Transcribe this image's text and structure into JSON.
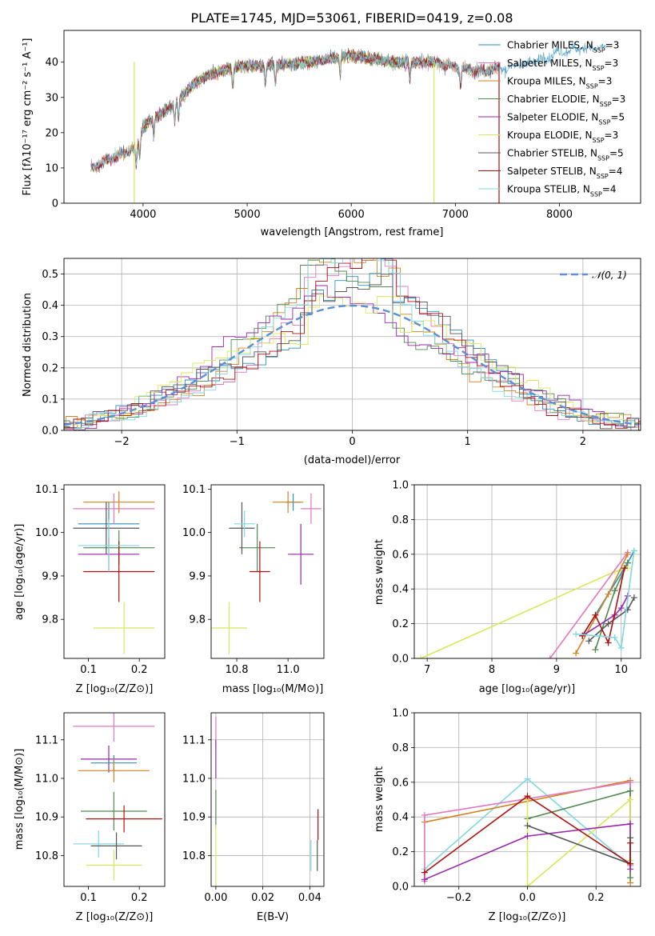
{
  "chart_data": [
    {
      "id": "spectrum",
      "type": "line",
      "title": "PLATE=1745, MJD=53061, FIBERID=0419, z=0.08",
      "xlabel": "wavelength [Angstrom, rest frame]",
      "ylabel": "Flux [fλ10⁻¹⁷ erg cm⁻² s⁻¹ A⁻¹]",
      "xlim": [
        3240,
        8780
      ],
      "ylim": [
        0,
        49
      ],
      "xticks": [
        4000,
        5000,
        6000,
        7000,
        8000
      ],
      "yticks": [
        0,
        10,
        20,
        30,
        40
      ],
      "grid": false,
      "legend_position": "top-right",
      "continuum": {
        "x": [
          3500,
          3650,
          3800,
          3950,
          4000,
          4100,
          4200,
          4300,
          4400,
          4500,
          4600,
          4800,
          5000,
          5200,
          5400,
          5600,
          5800,
          6000,
          6200,
          6400,
          6600,
          6800,
          7000,
          7200,
          7400,
          7600,
          7800,
          8000,
          8200,
          8450
        ],
        "y": [
          10,
          12,
          14,
          16,
          22,
          24,
          26,
          28,
          31,
          34,
          36,
          38,
          39,
          39,
          39.5,
          40,
          41,
          42,
          41,
          40,
          40,
          40,
          38.5,
          37.5,
          38,
          39,
          40.5,
          43,
          44,
          44
        ]
      },
      "absorption_lines": [
        3934,
        3969,
        4102,
        4304,
        4341,
        4861,
        5175,
        5270,
        5893,
        6563,
        7050
      ],
      "spikes": [
        {
          "series": "Kroupa ELODIE",
          "x": 3915
        },
        {
          "series": "Kroupa ELODIE",
          "x": 6795
        },
        {
          "series": "Salpeter STELIB",
          "x": 7420
        }
      ],
      "series": [
        {
          "name": "Chabrier MILES",
          "nssp": "3",
          "color": "#2f8fbf",
          "xrange": [
            3500,
            8450
          ]
        },
        {
          "name": "Salpeter MILES",
          "nssp": "3",
          "color": "#e377c2",
          "xrange": [
            3500,
            7420
          ]
        },
        {
          "name": "Kroupa MILES",
          "nssp": "3",
          "color": "#d4821e",
          "xrange": [
            3500,
            7420
          ]
        },
        {
          "name": "Chabrier ELODIE",
          "nssp": "3",
          "color": "#4f8a4f",
          "xrange": [
            3900,
            6800
          ]
        },
        {
          "name": "Salpeter ELODIE",
          "nssp": "5",
          "color": "#9a27b0",
          "xrange": [
            3900,
            6800
          ]
        },
        {
          "name": "Kroupa ELODIE",
          "nssp": "3",
          "color": "#d8e85a",
          "xrange": [
            3900,
            6800
          ]
        },
        {
          "name": "Chabrier STELIB",
          "nssp": "5",
          "color": "#555555",
          "xrange": [
            3500,
            7420
          ]
        },
        {
          "name": "Salpeter STELIB",
          "nssp": "4",
          "color": "#b01010",
          "xrange": [
            3500,
            7420
          ]
        },
        {
          "name": "Kroupa STELIB",
          "nssp": "4",
          "color": "#7fd8e0",
          "xrange": [
            3500,
            7420
          ]
        }
      ],
      "legend_subscript": "SSP"
    },
    {
      "id": "residuals",
      "type": "histogram",
      "xlabel": "(data-model)/error",
      "ylabel": "Normed distribution",
      "xlim": [
        -2.5,
        2.5
      ],
      "ylim": [
        0,
        0.55
      ],
      "xticks": [
        -2,
        -1,
        0,
        1,
        2
      ],
      "yticks": [
        0.0,
        0.1,
        0.2,
        0.3,
        0.4,
        0.5
      ],
      "grid": true,
      "legend_position": "top-right",
      "reference": {
        "name": "𝒩(0, 1)",
        "mean": 0,
        "sigma": 1,
        "color": "#5b8fd6"
      },
      "bin_width": 0.1
    },
    {
      "id": "age_vs_Z",
      "type": "errorbar",
      "xlabel": "Z [log₁₀(Z/Z⊙)]",
      "ylabel": "age  [log₁₀(age/yr)]",
      "xlim": [
        0.052,
        0.25
      ],
      "ylim": [
        9.71,
        10.11
      ],
      "xticks": [
        0.1,
        0.2
      ],
      "yticks": [
        9.8,
        9.9,
        10.0,
        10.1
      ],
      "grid": false,
      "points": [
        {
          "series": "Chabrier MILES",
          "x": 0.14,
          "xerr": 0.06,
          "y": 10.02,
          "yerr": 0.05
        },
        {
          "series": "Salpeter MILES",
          "x": 0.15,
          "xerr": 0.08,
          "y": 10.055,
          "yerr": 0.035
        },
        {
          "series": "Kroupa MILES",
          "x": 0.16,
          "xerr": 0.07,
          "y": 10.07,
          "yerr": 0.025
        },
        {
          "series": "Chabrier ELODIE",
          "x": 0.16,
          "xerr": 0.07,
          "y": 9.965,
          "yerr": 0.04
        },
        {
          "series": "Salpeter ELODIE",
          "x": 0.14,
          "xerr": 0.06,
          "y": 9.95,
          "yerr": 0.04
        },
        {
          "series": "Kroupa ELODIE",
          "x": 0.17,
          "xerr": 0.06,
          "y": 9.78,
          "yerr": 0.06
        },
        {
          "series": "Chabrier STELIB",
          "x": 0.135,
          "xerr": 0.065,
          "y": 10.01,
          "yerr": 0.06
        },
        {
          "series": "Salpeter STELIB",
          "x": 0.16,
          "xerr": 0.07,
          "y": 9.91,
          "yerr": 0.07
        },
        {
          "series": "Kroupa STELIB",
          "x": 0.14,
          "xerr": 0.06,
          "y": 9.97,
          "yerr": 0.06
        }
      ]
    },
    {
      "id": "age_vs_mass",
      "type": "errorbar",
      "xlabel": "mass [log₁₀(M/M⊙)]",
      "ylabel": "",
      "xlim": [
        10.7,
        11.14
      ],
      "ylim": [
        9.71,
        10.11
      ],
      "xticks": [
        10.8,
        11.0
      ],
      "yticks": [
        9.8,
        9.9,
        10.0,
        10.1
      ],
      "grid": false,
      "points": [
        {
          "series": "Chabrier MILES",
          "x": 11.02,
          "xerr": 0.03,
          "y": 10.07,
          "yerr": 0.02
        },
        {
          "series": "Salpeter MILES",
          "x": 11.09,
          "xerr": 0.04,
          "y": 10.055,
          "yerr": 0.035
        },
        {
          "series": "Kroupa MILES",
          "x": 11.0,
          "xerr": 0.06,
          "y": 10.07,
          "yerr": 0.025
        },
        {
          "series": "Chabrier ELODIE",
          "x": 10.88,
          "xerr": 0.07,
          "y": 9.965,
          "yerr": 0.055
        },
        {
          "series": "Salpeter ELODIE",
          "x": 11.05,
          "xerr": 0.05,
          "y": 9.95,
          "yerr": 0.07
        },
        {
          "series": "Kroupa ELODIE",
          "x": 10.77,
          "xerr": 0.07,
          "y": 9.78,
          "yerr": 0.06
        },
        {
          "series": "Chabrier STELIB",
          "x": 10.82,
          "xerr": 0.05,
          "y": 10.01,
          "yerr": 0.06
        },
        {
          "series": "Salpeter STELIB",
          "x": 10.89,
          "xerr": 0.04,
          "y": 9.91,
          "yerr": 0.07
        },
        {
          "series": "Kroupa STELIB",
          "x": 10.83,
          "xerr": 0.04,
          "y": 10.02,
          "yerr": 0.03
        }
      ]
    },
    {
      "id": "weight_vs_age",
      "type": "line",
      "xlabel": "age  [log₁₀(age/yr)]",
      "ylabel": "mass weight",
      "xlim": [
        6.8,
        10.3
      ],
      "ylim": [
        0,
        1.0
      ],
      "xticks": [
        7,
        8,
        9,
        10
      ],
      "yticks": [
        0.0,
        0.2,
        0.4,
        0.6,
        0.8,
        1.0
      ],
      "grid": true,
      "lines": [
        {
          "series": "Kroupa ELODIE",
          "x": [
            6.9,
            9.9,
            10.1
          ],
          "y": [
            0.0,
            0.5,
            0.52
          ]
        },
        {
          "series": "Salpeter MILES",
          "x": [
            8.9,
            10.1
          ],
          "y": [
            0.0,
            0.61
          ]
        },
        {
          "series": "Chabrier MILES",
          "x": [
            9.4,
            10.1,
            10.2
          ],
          "y": [
            0.13,
            0.55,
            0.62
          ]
        },
        {
          "series": "Kroupa MILES",
          "x": [
            9.3,
            9.8,
            10.1
          ],
          "y": [
            0.03,
            0.37,
            0.6
          ]
        },
        {
          "series": "Chabrier ELODIE",
          "x": [
            9.6,
            9.9,
            10.1
          ],
          "y": [
            0.05,
            0.39,
            0.55
          ]
        },
        {
          "series": "Salpeter ELODIE",
          "x": [
            9.4,
            9.9,
            10.0,
            10.1
          ],
          "y": [
            0.13,
            0.25,
            0.29,
            0.36
          ]
        },
        {
          "series": "Chabrier STELIB",
          "x": [
            9.5,
            9.8,
            10.1,
            10.2
          ],
          "y": [
            0.1,
            0.2,
            0.28,
            0.35
          ]
        },
        {
          "series": "Salpeter STELIB",
          "x": [
            9.4,
            9.6,
            9.8,
            10.05
          ],
          "y": [
            0.13,
            0.25,
            0.09,
            0.52
          ]
        },
        {
          "series": "Kroupa STELIB",
          "x": [
            9.3,
            9.9,
            10.0,
            10.2
          ],
          "y": [
            0.14,
            0.12,
            0.06,
            0.62
          ]
        }
      ]
    },
    {
      "id": "mass_vs_Z",
      "type": "errorbar",
      "xlabel": "Z [log₁₀(Z/Z⊙)]",
      "ylabel": "mass [log₁₀(M/M⊙)]",
      "xlim": [
        0.052,
        0.25
      ],
      "ylim": [
        10.72,
        11.17
      ],
      "xticks": [
        0.1,
        0.2
      ],
      "yticks": [
        10.8,
        10.9,
        11.0,
        11.1
      ],
      "grid": false,
      "points": [
        {
          "series": "Salpeter MILES",
          "x": 0.15,
          "xerr": 0.08,
          "y": 11.135,
          "yerr": 0.04
        },
        {
          "series": "Salpeter ELODIE",
          "x": 0.14,
          "xerr": 0.055,
          "y": 11.05,
          "yerr": 0.035
        },
        {
          "series": "Chabrier MILES",
          "x": 0.15,
          "xerr": 0.045,
          "y": 11.04,
          "yerr": 0.02
        },
        {
          "series": "Kroupa MILES",
          "x": 0.15,
          "xerr": 0.07,
          "y": 11.02,
          "yerr": 0.03
        },
        {
          "series": "Chabrier ELODIE",
          "x": 0.15,
          "xerr": 0.065,
          "y": 10.915,
          "yerr": 0.05
        },
        {
          "series": "Salpeter STELIB",
          "x": 0.17,
          "xerr": 0.075,
          "y": 10.895,
          "yerr": 0.035
        },
        {
          "series": "Kroupa STELIB",
          "x": 0.12,
          "xerr": 0.05,
          "y": 10.83,
          "yerr": 0.035
        },
        {
          "series": "Chabrier STELIB",
          "x": 0.155,
          "xerr": 0.05,
          "y": 10.825,
          "yerr": 0.035
        },
        {
          "series": "Kroupa ELODIE",
          "x": 0.15,
          "xerr": 0.055,
          "y": 10.775,
          "yerr": 0.04
        }
      ]
    },
    {
      "id": "mass_vs_EBV",
      "type": "errorbar",
      "xlabel": "E(B-V)",
      "ylabel": "",
      "xlim": [
        -0.002,
        0.046
      ],
      "ylim": [
        10.72,
        11.17
      ],
      "xticks": [
        0.0,
        0.02,
        0.04
      ],
      "yticks": [
        10.8,
        10.9,
        11.0,
        11.1
      ],
      "grid": true,
      "points": [
        {
          "series": "Salpeter MILES",
          "x": 0.0,
          "xerr": 0.0,
          "y": 11.12,
          "yerr": 0.04
        },
        {
          "series": "Salpeter ELODIE",
          "x": 0.0,
          "xerr": 0.0,
          "y": 11.05,
          "yerr": 0.05
        },
        {
          "series": "Chabrier ELODIE",
          "x": 0.0,
          "xerr": 0.0,
          "y": 10.92,
          "yerr": 0.05
        },
        {
          "series": "Kroupa ELODIE",
          "x": 0.0,
          "xerr": 0.0,
          "y": 10.8,
          "yerr": 0.08
        },
        {
          "series": "Kroupa STELIB",
          "x": 0.0405,
          "xerr": 0.0,
          "y": 10.8,
          "yerr": 0.04
        },
        {
          "series": "Salpeter STELIB",
          "x": 0.0435,
          "xerr": 0.0,
          "y": 10.88,
          "yerr": 0.04
        },
        {
          "series": "Chabrier STELIB",
          "x": 0.0432,
          "xerr": 0.0,
          "y": 10.8,
          "yerr": 0.04
        }
      ]
    },
    {
      "id": "weight_vs_Z",
      "type": "line",
      "xlabel": "Z [log₁₀(Z/Z⊙)]",
      "ylabel": "mass weight",
      "xlim": [
        -0.33,
        0.33
      ],
      "ylim": [
        0,
        1.0
      ],
      "xticks": [
        -0.2,
        0.0,
        0.2
      ],
      "yticks": [
        0.0,
        0.2,
        0.4,
        0.6,
        0.8,
        1.0
      ],
      "grid": true,
      "lines": [
        {
          "series": "Kroupa STELIB",
          "x": [
            -0.3,
            0.0,
            0.3
          ],
          "y": [
            0.1,
            0.62,
            0.12
          ]
        },
        {
          "series": "Kroupa MILES",
          "x": [
            -0.3,
            0.3,
            0.3
          ],
          "y": [
            0.37,
            0.61,
            0.02
          ]
        },
        {
          "series": "Salpeter MILES",
          "x": [
            -0.3,
            -0.3,
            0.3,
            0.3
          ],
          "y": [
            0.03,
            0.41,
            0.6,
            0.12
          ]
        },
        {
          "series": "Chabrier ELODIE",
          "x": [
            0.0,
            0.3,
            0.3
          ],
          "y": [
            0.39,
            0.55,
            0.05
          ]
        },
        {
          "series": "Kroupa ELODIE",
          "x": [
            0.0,
            0.0,
            0.3,
            0.3
          ],
          "y": [
            0.5,
            0.0,
            0.5,
            0.15
          ]
        },
        {
          "series": "Salpeter ELODIE",
          "x": [
            -0.3,
            0.0,
            0.3,
            0.3
          ],
          "y": [
            0.04,
            0.29,
            0.36,
            0.1
          ]
        },
        {
          "series": "Chabrier STELIB",
          "x": [
            0.0,
            0.3,
            0.3
          ],
          "y": [
            0.35,
            0.13,
            0.28
          ]
        },
        {
          "series": "Salpeter STELIB",
          "x": [
            -0.3,
            0.0,
            0.3,
            0.3
          ],
          "y": [
            0.08,
            0.52,
            0.13,
            0.25
          ]
        }
      ]
    }
  ]
}
